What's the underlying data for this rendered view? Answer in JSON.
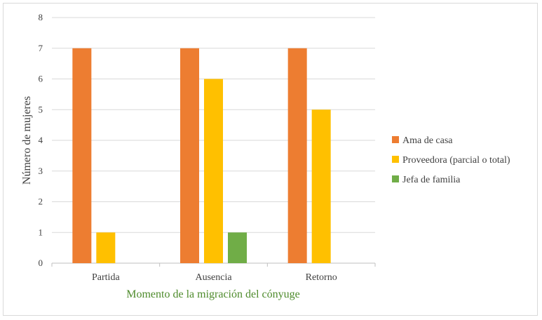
{
  "chart_data": {
    "type": "bar",
    "categories": [
      "Partida",
      "Ausencia",
      "Retorno"
    ],
    "series": [
      {
        "name": "Ama de casa",
        "values": [
          7,
          7,
          7
        ],
        "color": "#ed7d31"
      },
      {
        "name": "Proveedora (parcial o total)",
        "values": [
          1,
          6,
          5
        ],
        "color": "#ffc000"
      },
      {
        "name": "Jefa de familia",
        "values": [
          0,
          1,
          0
        ],
        "color": "#70ad47"
      }
    ],
    "xlabel": "Momento de la migración del cónyuge",
    "ylabel": "Número de mujeres",
    "ylim": [
      0,
      8
    ],
    "yticks": [
      0,
      1,
      2,
      3,
      4,
      5,
      6,
      7,
      8
    ],
    "grid": true,
    "legend": "right"
  }
}
